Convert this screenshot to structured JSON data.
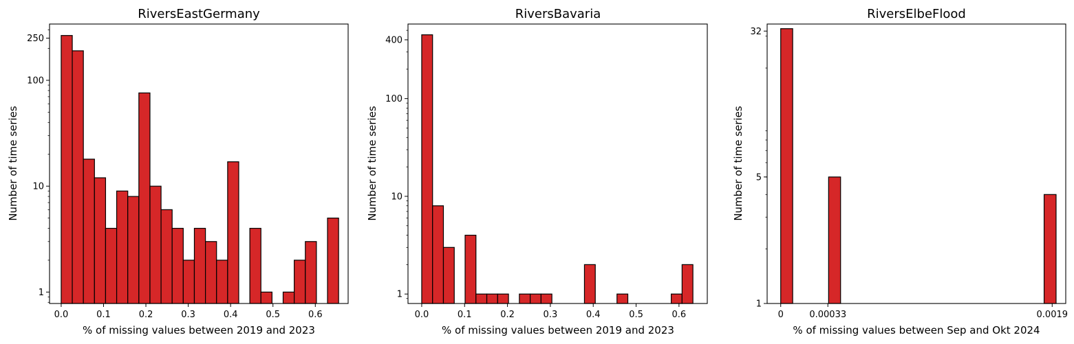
{
  "chart_data": [
    {
      "type": "bar",
      "title": "RiversEastGermany",
      "xlabel": "% of missing values between 2019 and 2023",
      "ylabel": "Number of time series",
      "y_scale": "log",
      "bar_color": "#d62728",
      "edge_color": "#000000",
      "xlim": [
        -0.0275,
        0.6775
      ],
      "ylim": [
        0.78,
        340
      ],
      "xticks": [
        0.0,
        0.1,
        0.2,
        0.3,
        0.4,
        0.5,
        0.6
      ],
      "xtick_labels": [
        "0.0",
        "0.1",
        "0.2",
        "0.3",
        "0.4",
        "0.5",
        "0.6"
      ],
      "yticks": [
        1,
        10,
        100,
        250
      ],
      "ytick_labels": [
        "1",
        "10",
        "100",
        "250"
      ],
      "bin_edges": [
        0.0,
        0.0262,
        0.0524,
        0.0786,
        0.1048,
        0.131,
        0.1572,
        0.1834,
        0.2096,
        0.2358,
        0.262,
        0.2882,
        0.3144,
        0.3406,
        0.3668,
        0.393,
        0.4192,
        0.4454,
        0.4716,
        0.4978,
        0.524,
        0.5502,
        0.5764,
        0.6026,
        0.6288,
        0.655
      ],
      "counts": [
        265,
        190,
        18,
        12,
        4,
        9,
        8,
        76,
        10,
        6,
        4,
        2,
        4,
        3,
        2,
        17,
        0,
        4,
        1,
        0,
        1,
        2,
        3,
        0,
        5
      ]
    },
    {
      "type": "bar",
      "title": "RiversBavaria",
      "xlabel": "% of missing values between 2019 and 2023",
      "ylabel": "Number of time series",
      "y_scale": "log",
      "bar_color": "#d62728",
      "edge_color": "#000000",
      "xlim": [
        -0.032,
        0.666
      ],
      "ylim": [
        0.8,
        580
      ],
      "xticks": [
        0.0,
        0.1,
        0.2,
        0.3,
        0.4,
        0.5,
        0.6
      ],
      "xtick_labels": [
        "0.0",
        "0.1",
        "0.2",
        "0.3",
        "0.4",
        "0.5",
        "0.6"
      ],
      "yticks": [
        1,
        10,
        100,
        400
      ],
      "ytick_labels": [
        "1",
        "10",
        "100",
        "400"
      ],
      "bin_edges": [
        0.0,
        0.0253,
        0.0506,
        0.0759,
        0.1012,
        0.1265,
        0.1518,
        0.1771,
        0.2024,
        0.2277,
        0.253,
        0.2783,
        0.3036,
        0.3289,
        0.3542,
        0.3795,
        0.4048,
        0.4301,
        0.4554,
        0.4807,
        0.506,
        0.5313,
        0.5566,
        0.5819,
        0.6072,
        0.6325
      ],
      "counts": [
        450,
        8,
        3,
        0,
        4,
        1,
        1,
        1,
        0,
        1,
        1,
        1,
        0,
        0,
        0,
        2,
        0,
        0,
        1,
        0,
        0,
        0,
        0,
        1,
        2
      ]
    },
    {
      "type": "bar",
      "title": "RiversElbeFlood",
      "xlabel": "% of missing values between Sep and Okt 2024",
      "ylabel": "Number of time series",
      "y_scale": "log",
      "bar_color": "#d62728",
      "edge_color": "#000000",
      "xlim": [
        -9.5e-05,
        0.001995
      ],
      "ylim": [
        1,
        35
      ],
      "xticks": [
        0,
        0.00033,
        0.0019
      ],
      "xtick_labels": [
        "0",
        "0.00033",
        "0.0019"
      ],
      "yticks": [
        1,
        5,
        32
      ],
      "ytick_labels": [
        "1",
        "5",
        "32"
      ],
      "bin_edges": [
        0.0,
        8.38e-05,
        0.0001676,
        0.0002514,
        0.0003352,
        0.000419,
        0.0005028,
        0.0005866,
        0.0006704,
        0.0007542,
        0.000838,
        0.0009218,
        0.0010056,
        0.0010894,
        0.0011732,
        0.001257,
        0.0013408,
        0.0014246,
        0.0015084,
        0.0015922,
        0.001676,
        0.0017598,
        0.0018436,
        0.0019274,
        0.0020112
      ],
      "counts": [
        33,
        0,
        0,
        0,
        5,
        0,
        0,
        0,
        0,
        0,
        0,
        0,
        0,
        0,
        0,
        0,
        0,
        0,
        0,
        0,
        0,
        0,
        4,
        0
      ]
    }
  ]
}
